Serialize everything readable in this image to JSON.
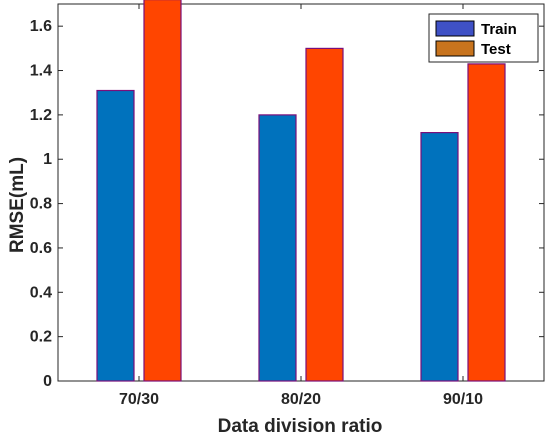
{
  "chart_data": {
    "type": "bar",
    "categories": [
      "70/30",
      "80/20",
      "90/10"
    ],
    "series": [
      {
        "name": "Train",
        "values": [
          1.31,
          1.2,
          1.12
        ],
        "color": "#0072BD"
      },
      {
        "name": "Test",
        "values": [
          1.72,
          1.5,
          1.43
        ],
        "color": "#FF4500"
      }
    ],
    "legend_swatch_colors": [
      "#3F51C6",
      "#C8741E"
    ],
    "xlabel": "Data division ratio",
    "ylabel": "RMSE(mL)",
    "ylim": [
      0,
      1.7
    ],
    "yticks": [
      0,
      0.2,
      0.4,
      0.6,
      0.8,
      1,
      1.2,
      1.4,
      1.6
    ],
    "ytick_labels": [
      "0",
      "0.2",
      "0.4",
      "0.6",
      "0.8",
      "1",
      "1.2",
      "1.4",
      "1.6"
    ],
    "grid": false,
    "legend_position": "top-right",
    "bar_edge_color": "#7A0F7A"
  }
}
